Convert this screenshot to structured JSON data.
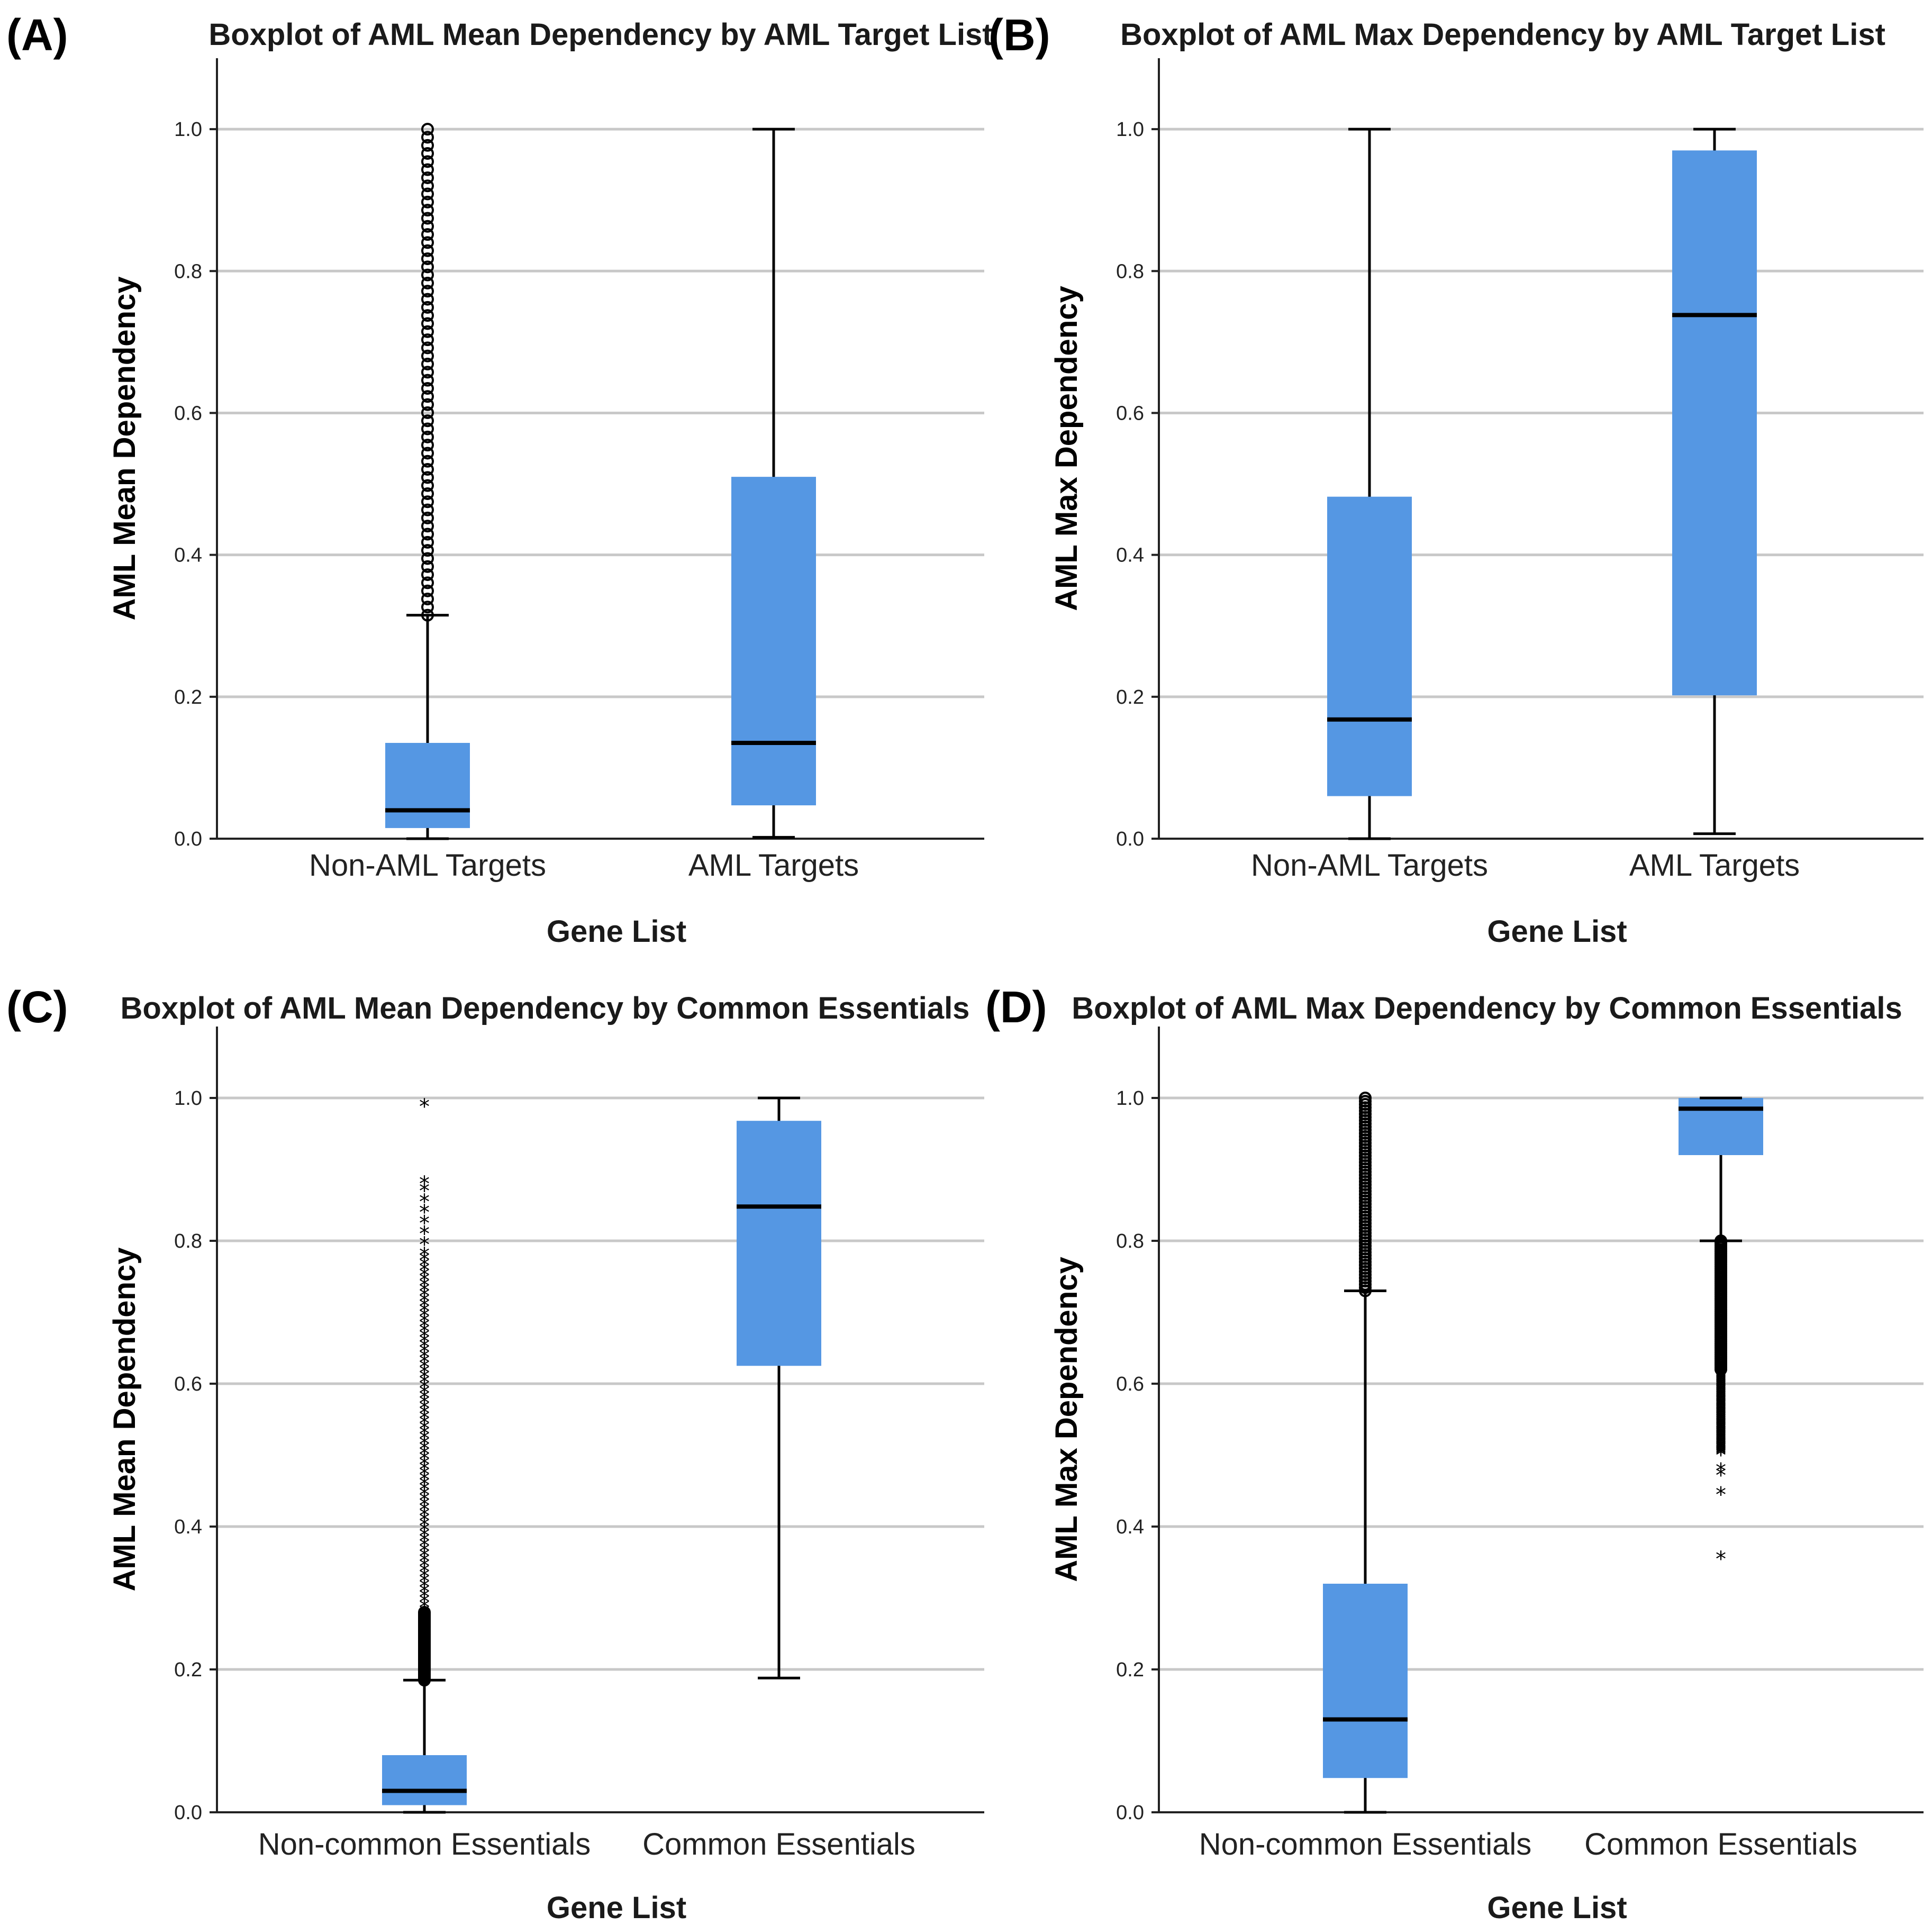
{
  "chart_data": [
    {
      "panel": "(A)",
      "type": "boxplot",
      "title": "Boxplot of AML Mean Dependency by AML Target List",
      "xlabel": "Gene List",
      "ylabel": "AML Mean Dependency",
      "ylim": [
        0.0,
        1.1
      ],
      "yticks": [
        "0.0",
        "0.2",
        "0.4",
        "0.6",
        "0.8",
        "1.0"
      ],
      "grid": true,
      "categories": [
        "Non-AML Targets",
        "AML Targets"
      ],
      "boxes": [
        {
          "category": "Non-AML Targets",
          "whisker_low": 0.0,
          "q1": 0.015,
          "median": 0.04,
          "q3": 0.135,
          "whisker_high": 0.315,
          "outlier_style": "circle",
          "outliers_dense_range": [
            0.315,
            1.0
          ]
        },
        {
          "category": "AML Targets",
          "whisker_low": 0.002,
          "q1": 0.047,
          "median": 0.135,
          "q3": 0.51,
          "whisker_high": 1.0,
          "outlier_style": "none"
        }
      ]
    },
    {
      "panel": "(B)",
      "type": "boxplot",
      "title": "Boxplot of AML Max Dependency by AML Target List",
      "xlabel": "Gene List",
      "ylabel": "AML Max Dependency",
      "ylim": [
        0.0,
        1.1
      ],
      "yticks": [
        "0.0",
        "0.2",
        "0.4",
        "0.6",
        "0.8",
        "1.0"
      ],
      "grid": true,
      "categories": [
        "Non-AML Targets",
        "AML Targets"
      ],
      "boxes": [
        {
          "category": "Non-AML Targets",
          "whisker_low": 0.0,
          "q1": 0.06,
          "median": 0.168,
          "q3": 0.482,
          "whisker_high": 1.0,
          "outlier_style": "none"
        },
        {
          "category": "AML Targets",
          "whisker_low": 0.007,
          "q1": 0.202,
          "median": 0.738,
          "q3": 0.97,
          "whisker_high": 1.0,
          "outlier_style": "none"
        }
      ]
    },
    {
      "panel": "(C)",
      "type": "boxplot",
      "title": "Boxplot of AML Mean Dependency by Common Essentials",
      "xlabel": "Gene List",
      "ylabel": "AML Mean Dependency",
      "ylim": [
        0.0,
        1.1
      ],
      "yticks": [
        "0.0",
        "0.2",
        "0.4",
        "0.6",
        "0.8",
        "1.0"
      ],
      "grid": true,
      "categories": [
        "Non-common Essentials",
        "Common Essentials"
      ],
      "boxes": [
        {
          "category": "Non-common Essentials",
          "whisker_low": 0.0,
          "q1": 0.01,
          "median": 0.03,
          "q3": 0.08,
          "whisker_high": 0.185,
          "outlier_style": "circle",
          "outliers_dense_range": [
            0.185,
            0.28
          ],
          "extreme_dense_range": [
            0.28,
            0.78
          ],
          "extreme_points": [
            0.795,
            0.81,
            0.825,
            0.84,
            0.855,
            0.87,
            0.88,
            0.988
          ]
        },
        {
          "category": "Common Essentials",
          "whisker_low": 0.188,
          "q1": 0.625,
          "median": 0.848,
          "q3": 0.968,
          "whisker_high": 1.0,
          "outlier_style": "none"
        }
      ]
    },
    {
      "panel": "(D)",
      "type": "boxplot",
      "title": "Boxplot of AML Max Dependency by Common Essentials",
      "xlabel": "Gene List",
      "ylabel": "AML Max Dependency",
      "ylim": [
        0.0,
        1.1
      ],
      "yticks": [
        "0.0",
        "0.2",
        "0.4",
        "0.6",
        "0.8",
        "1.0"
      ],
      "grid": true,
      "categories": [
        "Non-common Essentials",
        "Common Essentials"
      ],
      "boxes": [
        {
          "category": "Non-common Essentials",
          "whisker_low": 0.0,
          "q1": 0.048,
          "median": 0.13,
          "q3": 0.32,
          "whisker_high": 0.73,
          "outlier_style": "circle",
          "outliers_dense_range": [
            0.73,
            1.0
          ]
        },
        {
          "category": "Common Essentials",
          "whisker_low": 0.8,
          "q1": 0.92,
          "median": 0.985,
          "q3": 1.0,
          "whisker_high": 1.0,
          "outlier_style": "circle",
          "outliers_dense_range": [
            0.62,
            0.8
          ],
          "extreme_dense_range": [
            0.5,
            0.62
          ],
          "extreme_points": [
            0.478,
            0.472,
            0.445,
            0.355
          ]
        }
      ]
    }
  ],
  "style": {
    "box_fill": "#5597e3",
    "line_color": "#000000",
    "grid_color": "#c8c8c8"
  }
}
